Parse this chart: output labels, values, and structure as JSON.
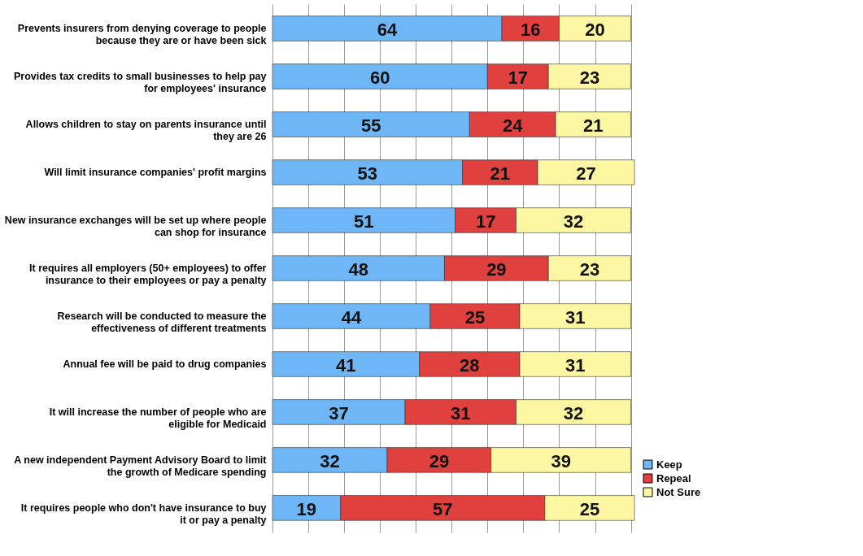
{
  "chart_data": {
    "type": "bar",
    "orientation": "horizontal",
    "stacked": true,
    "data_labels": true,
    "grid": "x",
    "legend": "bottom right",
    "tick_labels": "y",
    "categories": [
      "Prevents insurers from denying coverage to people because they are or have been sick",
      "Provides tax credits to small businesses to help pay for employees' insurance",
      "Allows children to stay on parents insurance until they are 26",
      "Will limit insurance companies' profit margins",
      "New insurance exchanges will be set up where people can shop for insurance",
      "It requires all employers (50+ employees) to offer insurance to their employees or pay a penalty",
      "Research will be conducted to measure the effectiveness of different treatments",
      "Annual fee will be paid to drug companies",
      "It will increase the number of people who are eligible for Medicaid",
      "A new independent Payment Advisory Board to limit the growth of Medicare spending",
      "It requires people who don't have insurance to buy it or pay a penalty"
    ],
    "xlim": [
      0,
      101
    ],
    "xticks": [
      0,
      10,
      20,
      30,
      40,
      50,
      60,
      70,
      80,
      90,
      100
    ],
    "series": [
      {
        "name": "Keep",
        "color": "#6fb6f6",
        "values": [
          64,
          60,
          55,
          53,
          51,
          48,
          44,
          41,
          37,
          32,
          19
        ]
      },
      {
        "name": "Repeal",
        "color": "#e0413f",
        "values": [
          16,
          17,
          24,
          21,
          17,
          29,
          25,
          28,
          31,
          29,
          57
        ]
      },
      {
        "name": "Not Sure",
        "color": "#fdf6a3",
        "values": [
          20,
          23,
          21,
          27,
          32,
          23,
          31,
          31,
          32,
          39,
          25
        ]
      }
    ]
  }
}
